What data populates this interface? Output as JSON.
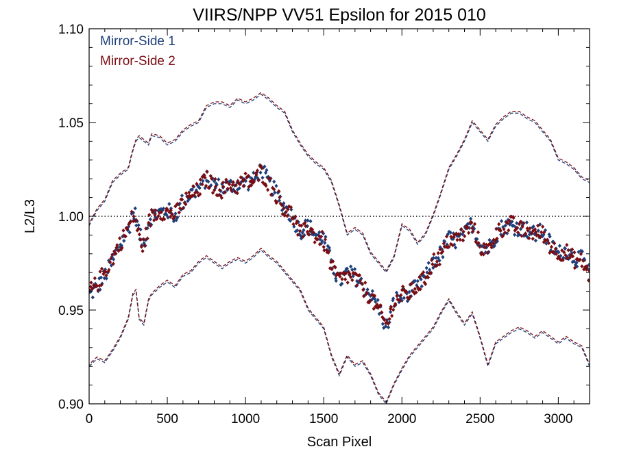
{
  "chart_data": {
    "type": "scatter",
    "title": "VIIRS/NPP VV51 Epsilon for 2015 010",
    "xlabel": "Scan Pixel",
    "ylabel": "L2/L3",
    "xlim": [
      0,
      3200
    ],
    "ylim": [
      0.9,
      1.1
    ],
    "x_ticks": [
      0,
      500,
      1000,
      1500,
      2000,
      2500,
      3000
    ],
    "x_tick_labels": [
      "0",
      "500",
      "1000",
      "1500",
      "2000",
      "2500",
      "3000"
    ],
    "y_ticks": [
      0.9,
      0.95,
      1.0,
      1.05,
      1.1
    ],
    "y_tick_labels": [
      "0.90",
      "0.95",
      "1.00",
      "1.05",
      "1.10"
    ],
    "reference_line": 1.0,
    "legend_position": "top-left",
    "colors": {
      "mirror_side_1": "#1f3f7a",
      "mirror_side_2": "#7a0d12"
    },
    "series": [
      {
        "name": "Mirror-Side 1",
        "center_x": [
          0,
          50,
          100,
          150,
          200,
          250,
          280,
          300,
          320,
          350,
          380,
          400,
          450,
          500,
          550,
          600,
          650,
          700,
          750,
          800,
          850,
          900,
          950,
          1000,
          1050,
          1100,
          1150,
          1200,
          1250,
          1300,
          1350,
          1400,
          1450,
          1500,
          1550,
          1600,
          1650,
          1700,
          1750,
          1800,
          1850,
          1900,
          1950,
          2000,
          2050,
          2100,
          2150,
          2200,
          2250,
          2300,
          2350,
          2400,
          2450,
          2500,
          2550,
          2600,
          2650,
          2700,
          2750,
          2800,
          2850,
          2900,
          2950,
          3000,
          3050,
          3100,
          3150,
          3200
        ],
        "center_y": [
          0.958,
          0.962,
          0.968,
          0.976,
          0.985,
          0.993,
          1.002,
          1.0,
          0.99,
          0.985,
          0.998,
          1.0,
          1.002,
          1.003,
          1.0,
          1.008,
          1.012,
          1.015,
          1.02,
          1.017,
          1.015,
          1.016,
          1.017,
          1.018,
          1.019,
          1.025,
          1.018,
          1.012,
          1.005,
          1.0,
          0.992,
          0.995,
          0.99,
          0.988,
          0.975,
          0.965,
          0.97,
          0.968,
          0.963,
          0.958,
          0.952,
          0.94,
          0.955,
          0.957,
          0.96,
          0.962,
          0.968,
          0.975,
          0.98,
          0.988,
          0.987,
          0.99,
          0.996,
          0.985,
          0.982,
          0.99,
          0.995,
          0.995,
          0.994,
          0.993,
          0.99,
          0.992,
          0.985,
          0.98,
          0.982,
          0.978,
          0.977,
          0.97
        ],
        "upper_envelope": [
          0.995,
          1.003,
          1.008,
          1.018,
          1.022,
          1.025,
          1.035,
          1.04,
          1.042,
          1.04,
          1.038,
          1.043,
          1.042,
          1.038,
          1.04,
          1.045,
          1.048,
          1.05,
          1.058,
          1.06,
          1.06,
          1.058,
          1.062,
          1.06,
          1.062,
          1.065,
          1.062,
          1.058,
          1.055,
          1.045,
          1.038,
          1.032,
          1.028,
          1.025,
          1.018,
          1.005,
          0.99,
          0.993,
          0.99,
          0.98,
          0.975,
          0.97,
          0.978,
          0.995,
          0.992,
          0.985,
          0.99,
          1.0,
          1.012,
          1.025,
          1.032,
          1.04,
          1.05,
          1.045,
          1.04,
          1.048,
          1.052,
          1.055,
          1.055,
          1.052,
          1.05,
          1.045,
          1.04,
          1.03,
          1.028,
          1.025,
          1.02,
          1.018
        ],
        "lower_envelope": [
          0.92,
          0.924,
          0.922,
          0.928,
          0.935,
          0.945,
          0.958,
          0.96,
          0.945,
          0.942,
          0.955,
          0.958,
          0.962,
          0.965,
          0.962,
          0.968,
          0.97,
          0.975,
          0.978,
          0.975,
          0.972,
          0.975,
          0.977,
          0.975,
          0.978,
          0.982,
          0.978,
          0.975,
          0.97,
          0.965,
          0.96,
          0.95,
          0.945,
          0.94,
          0.925,
          0.915,
          0.925,
          0.92,
          0.922,
          0.915,
          0.905,
          0.9,
          0.91,
          0.918,
          0.925,
          0.93,
          0.935,
          0.94,
          0.948,
          0.955,
          0.948,
          0.942,
          0.948,
          0.935,
          0.92,
          0.932,
          0.935,
          0.938,
          0.94,
          0.938,
          0.935,
          0.938,
          0.935,
          0.932,
          0.935,
          0.932,
          0.93,
          0.92
        ]
      },
      {
        "name": "Mirror-Side 2",
        "center_x": [
          0,
          50,
          100,
          150,
          200,
          250,
          280,
          300,
          320,
          350,
          380,
          400,
          450,
          500,
          550,
          600,
          650,
          700,
          750,
          800,
          850,
          900,
          950,
          1000,
          1050,
          1100,
          1150,
          1200,
          1250,
          1300,
          1350,
          1400,
          1450,
          1500,
          1550,
          1600,
          1650,
          1700,
          1750,
          1800,
          1850,
          1900,
          1950,
          2000,
          2050,
          2100,
          2150,
          2200,
          2250,
          2300,
          2350,
          2400,
          2450,
          2500,
          2550,
          2600,
          2650,
          2700,
          2750,
          2800,
          2850,
          2900,
          2950,
          3000,
          3050,
          3100,
          3150,
          3200
        ],
        "center_y": [
          0.96,
          0.964,
          0.97,
          0.978,
          0.986,
          0.994,
          1.0,
          0.998,
          0.988,
          0.984,
          0.996,
          1.0,
          1.003,
          1.002,
          1.001,
          1.007,
          1.011,
          1.014,
          1.02,
          1.016,
          1.014,
          1.017,
          1.016,
          1.019,
          1.018,
          1.024,
          1.017,
          1.011,
          1.004,
          1.001,
          0.99,
          0.994,
          0.989,
          0.987,
          0.973,
          0.966,
          0.968,
          0.967,
          0.962,
          0.957,
          0.95,
          0.942,
          0.954,
          0.958,
          0.959,
          0.963,
          0.967,
          0.976,
          0.979,
          0.987,
          0.988,
          0.991,
          0.995,
          0.984,
          0.981,
          0.991,
          0.994,
          0.996,
          0.993,
          0.992,
          0.991,
          0.991,
          0.984,
          0.981,
          0.981,
          0.977,
          0.976,
          0.968
        ],
        "upper_envelope": [
          0.996,
          1.004,
          1.009,
          1.019,
          1.023,
          1.026,
          1.036,
          1.041,
          1.043,
          1.041,
          1.039,
          1.044,
          1.043,
          1.039,
          1.041,
          1.046,
          1.049,
          1.051,
          1.059,
          1.061,
          1.061,
          1.059,
          1.063,
          1.061,
          1.063,
          1.066,
          1.063,
          1.059,
          1.056,
          1.046,
          1.039,
          1.033,
          1.029,
          1.026,
          1.019,
          1.006,
          0.991,
          0.994,
          0.991,
          0.981,
          0.976,
          0.971,
          0.979,
          0.996,
          0.993,
          0.986,
          0.991,
          1.001,
          1.013,
          1.026,
          1.033,
          1.041,
          1.051,
          1.046,
          1.041,
          1.049,
          1.053,
          1.056,
          1.056,
          1.053,
          1.051,
          1.046,
          1.041,
          1.031,
          1.029,
          1.026,
          1.021,
          1.019
        ],
        "lower_envelope": [
          0.921,
          0.925,
          0.923,
          0.929,
          0.936,
          0.946,
          0.959,
          0.961,
          0.946,
          0.943,
          0.956,
          0.959,
          0.963,
          0.966,
          0.963,
          0.969,
          0.971,
          0.976,
          0.979,
          0.976,
          0.973,
          0.976,
          0.978,
          0.976,
          0.979,
          0.983,
          0.979,
          0.976,
          0.971,
          0.966,
          0.961,
          0.951,
          0.946,
          0.941,
          0.926,
          0.916,
          0.926,
          0.921,
          0.923,
          0.916,
          0.906,
          0.901,
          0.911,
          0.919,
          0.926,
          0.931,
          0.936,
          0.941,
          0.949,
          0.956,
          0.949,
          0.943,
          0.949,
          0.936,
          0.921,
          0.933,
          0.936,
          0.939,
          0.941,
          0.939,
          0.936,
          0.939,
          0.936,
          0.933,
          0.936,
          0.933,
          0.931,
          0.921
        ]
      }
    ]
  }
}
